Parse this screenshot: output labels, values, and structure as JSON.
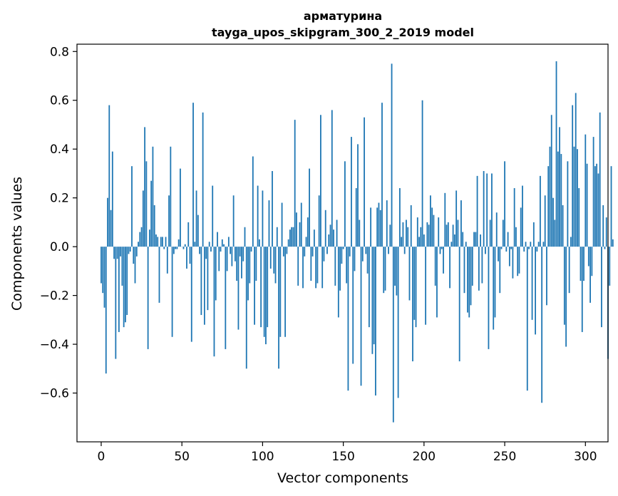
{
  "chart_data": {
    "type": "bar",
    "title_line1": "арматурина",
    "title_line2": "tayga_upos_skipgram_300_2_2019 model",
    "xlabel": "Vector components",
    "ylabel": "Components values",
    "xlim": [
      -15,
      314
    ],
    "ylim": [
      -0.8,
      0.83
    ],
    "xticks": [
      0,
      50,
      100,
      150,
      200,
      250,
      300
    ],
    "xtick_labels": [
      "0",
      "50",
      "100",
      "150",
      "200",
      "250",
      "300"
    ],
    "yticks": [
      -0.6,
      -0.4,
      -0.2,
      0.0,
      0.2,
      0.4,
      0.6,
      0.8
    ],
    "ytick_labels": [
      "−0.6",
      "−0.4",
      "−0.2",
      "0.0",
      "0.2",
      "0.4",
      "0.6",
      "0.8"
    ],
    "bar_color": "#1f77b4",
    "values": [
      -0.15,
      -0.19,
      -0.25,
      -0.52,
      0.2,
      0.58,
      0.15,
      0.39,
      -0.05,
      -0.46,
      -0.05,
      -0.35,
      -0.04,
      -0.16,
      -0.33,
      -0.31,
      -0.28,
      -0.03,
      -0.02,
      0.33,
      -0.07,
      -0.15,
      -0.04,
      0.02,
      0.06,
      0.08,
      0.23,
      0.49,
      0.35,
      -0.42,
      0.07,
      0.27,
      0.41,
      0.17,
      0.05,
      0.04,
      -0.23,
      0.04,
      0.04,
      -0.01,
      0.04,
      -0.11,
      0.21,
      0.41,
      -0.37,
      -0.03,
      -0.01,
      -0.01,
      0.03,
      0.32,
      0.0,
      -0.01,
      0.01,
      -0.09,
      0.1,
      -0.07,
      -0.39,
      0.59,
      0.02,
      0.23,
      0.13,
      -0.03,
      -0.28,
      0.55,
      -0.32,
      -0.05,
      -0.26,
      0.02,
      -0.02,
      0.25,
      -0.45,
      -0.22,
      0.06,
      -0.1,
      -0.02,
      0.03,
      0.01,
      -0.42,
      -0.1,
      0.04,
      -0.03,
      -0.08,
      0.21,
      -0.06,
      -0.14,
      -0.34,
      -0.04,
      -0.13,
      -0.06,
      0.08,
      -0.5,
      -0.22,
      -0.15,
      -0.02,
      0.37,
      -0.32,
      -0.14,
      0.25,
      0.03,
      -0.33,
      0.23,
      -0.37,
      -0.4,
      -0.33,
      0.19,
      -0.09,
      0.31,
      -0.11,
      -0.15,
      0.08,
      -0.5,
      -0.37,
      0.18,
      -0.04,
      -0.37,
      -0.03,
      0.03,
      0.07,
      0.08,
      0.08,
      0.52,
      0.14,
      -0.16,
      0.1,
      0.18,
      -0.17,
      -0.04,
      0.04,
      0.12,
      0.32,
      -0.14,
      -0.04,
      0.07,
      -0.17,
      -0.15,
      0.21,
      0.54,
      -0.17,
      -0.06,
      0.15,
      -0.03,
      0.05,
      0.09,
      0.56,
      0.07,
      -0.16,
      0.11,
      -0.29,
      -0.18,
      -0.07,
      -0.01,
      0.35,
      -0.15,
      -0.59,
      -0.04,
      0.45,
      -0.48,
      -0.1,
      0.24,
      0.42,
      0.11,
      -0.57,
      -0.06,
      0.53,
      -0.03,
      -0.11,
      -0.33,
      0.16,
      -0.44,
      -0.4,
      -0.61,
      0.16,
      0.18,
      0.15,
      0.59,
      -0.19,
      -0.18,
      0.19,
      -0.03,
      0.09,
      0.75,
      -0.72,
      -0.16,
      -0.2,
      -0.62,
      0.24,
      0.04,
      0.1,
      -0.03,
      0.11,
      0.08,
      -0.22,
      0.17,
      -0.47,
      -0.3,
      -0.33,
      0.12,
      0.04,
      0.08,
      0.6,
      0.05,
      -0.32,
      0.1,
      0.09,
      0.21,
      0.16,
      0.13,
      -0.16,
      -0.29,
      0.12,
      -0.03,
      -0.01,
      -0.11,
      0.22,
      0.09,
      0.1,
      -0.17,
      0.02,
      0.09,
      0.05,
      0.23,
      0.11,
      -0.47,
      0.19,
      0.06,
      -0.19,
      0.02,
      -0.27,
      -0.29,
      -0.24,
      -0.16,
      0.06,
      0.06,
      0.29,
      -0.18,
      0.05,
      -0.15,
      0.31,
      -0.03,
      0.3,
      -0.42,
      0.11,
      0.3,
      -0.34,
      -0.29,
      0.14,
      -0.06,
      -0.19,
      -0.01,
      0.11,
      0.35,
      -0.02,
      0.06,
      -0.08,
      -0.01,
      -0.13,
      0.24,
      0.08,
      -0.12,
      -0.11,
      0.16,
      0.25,
      -0.02,
      0.02,
      -0.59,
      -0.01,
      0.02,
      -0.3,
      0.1,
      -0.36,
      -0.02,
      0.02,
      0.29,
      -0.64,
      0.02,
      0.21,
      -0.24,
      0.33,
      0.41,
      0.54,
      0.2,
      0.11,
      0.76,
      0.39,
      0.49,
      0.38,
      0.17,
      -0.32,
      -0.41,
      0.35,
      -0.19,
      0.04,
      0.58,
      0.41,
      0.63,
      0.4,
      0.24,
      -0.14,
      -0.35,
      -0.14,
      0.46,
      0.34,
      -0.08,
      -0.23,
      -0.12,
      0.45,
      0.33,
      0.34,
      0.3,
      0.55,
      -0.33,
      0.17,
      -0.01,
      0.12,
      -0.46,
      -0.16,
      0.33,
      0.03
    ]
  }
}
